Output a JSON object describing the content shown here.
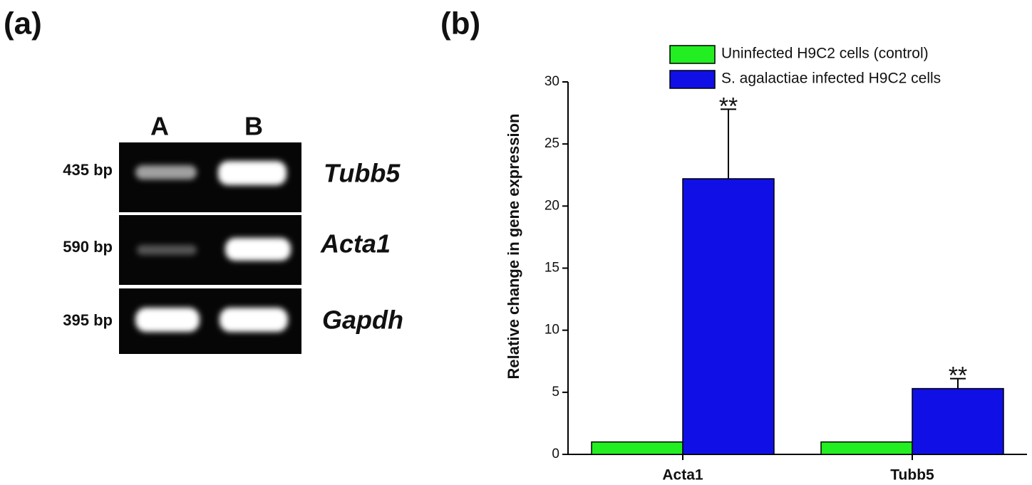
{
  "panel_labels": [
    "(a)",
    "(b)"
  ],
  "gel": {
    "lanes": [
      "A",
      "B"
    ],
    "rows": [
      {
        "size": "435 bp",
        "gene": "Tubb5"
      },
      {
        "size": "590 bp",
        "gene": "Acta1"
      },
      {
        "size": "395 bp",
        "gene": "Gapdh"
      }
    ]
  },
  "chart_data": {
    "type": "bar",
    "y_label": "Relative change in gene expression",
    "categories": [
      "Acta1",
      "Tubb5"
    ],
    "series": [
      {
        "name": "Uninfected H9C2 cells (control)",
        "color": "#22ee22",
        "values": [
          1,
          1
        ]
      },
      {
        "name": "S. agalactiae infected H9C2 cells",
        "color": "#1010e6",
        "values": [
          22.2,
          5.3
        ],
        "errors": [
          5.6,
          0.8
        ],
        "annotations": [
          "**",
          "**"
        ]
      }
    ],
    "ylim": [
      0,
      30
    ],
    "yticks": [
      0,
      5,
      10,
      15,
      20,
      25,
      30
    ],
    "legend": "top-right"
  }
}
